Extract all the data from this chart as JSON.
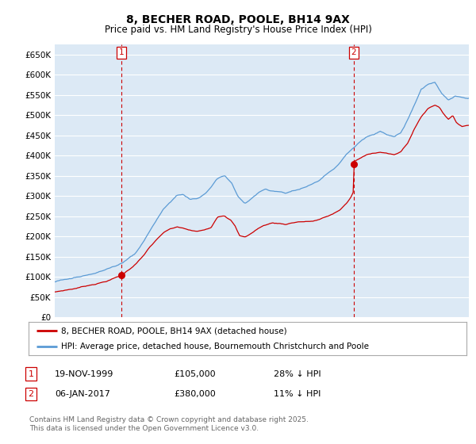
{
  "title": "8, BECHER ROAD, POOLE, BH14 9AX",
  "subtitle": "Price paid vs. HM Land Registry's House Price Index (HPI)",
  "ylim": [
    0,
    675000
  ],
  "yticks": [
    0,
    50000,
    100000,
    150000,
    200000,
    250000,
    300000,
    350000,
    400000,
    450000,
    500000,
    550000,
    600000,
    650000
  ],
  "xlim_start": 1995.0,
  "xlim_end": 2025.5,
  "sale1_x": 1999.89,
  "sale1_y": 105000,
  "sale1_label": "1",
  "sale2_x": 2017.03,
  "sale2_y": 380000,
  "sale2_label": "2",
  "red_color": "#cc0000",
  "blue_color": "#5b9bd5",
  "chart_bg": "#dce9f5",
  "legend1": "8, BECHER ROAD, POOLE, BH14 9AX (detached house)",
  "legend2": "HPI: Average price, detached house, Bournemouth Christchurch and Poole",
  "table_row1": [
    "1",
    "19-NOV-1999",
    "£105,000",
    "28% ↓ HPI"
  ],
  "table_row2": [
    "2",
    "06-JAN-2017",
    "£380,000",
    "11% ↓ HPI"
  ],
  "footer": "Contains HM Land Registry data © Crown copyright and database right 2025.\nThis data is licensed under the Open Government Licence v3.0.",
  "background_color": "#ffffff",
  "grid_color": "#ffffff"
}
